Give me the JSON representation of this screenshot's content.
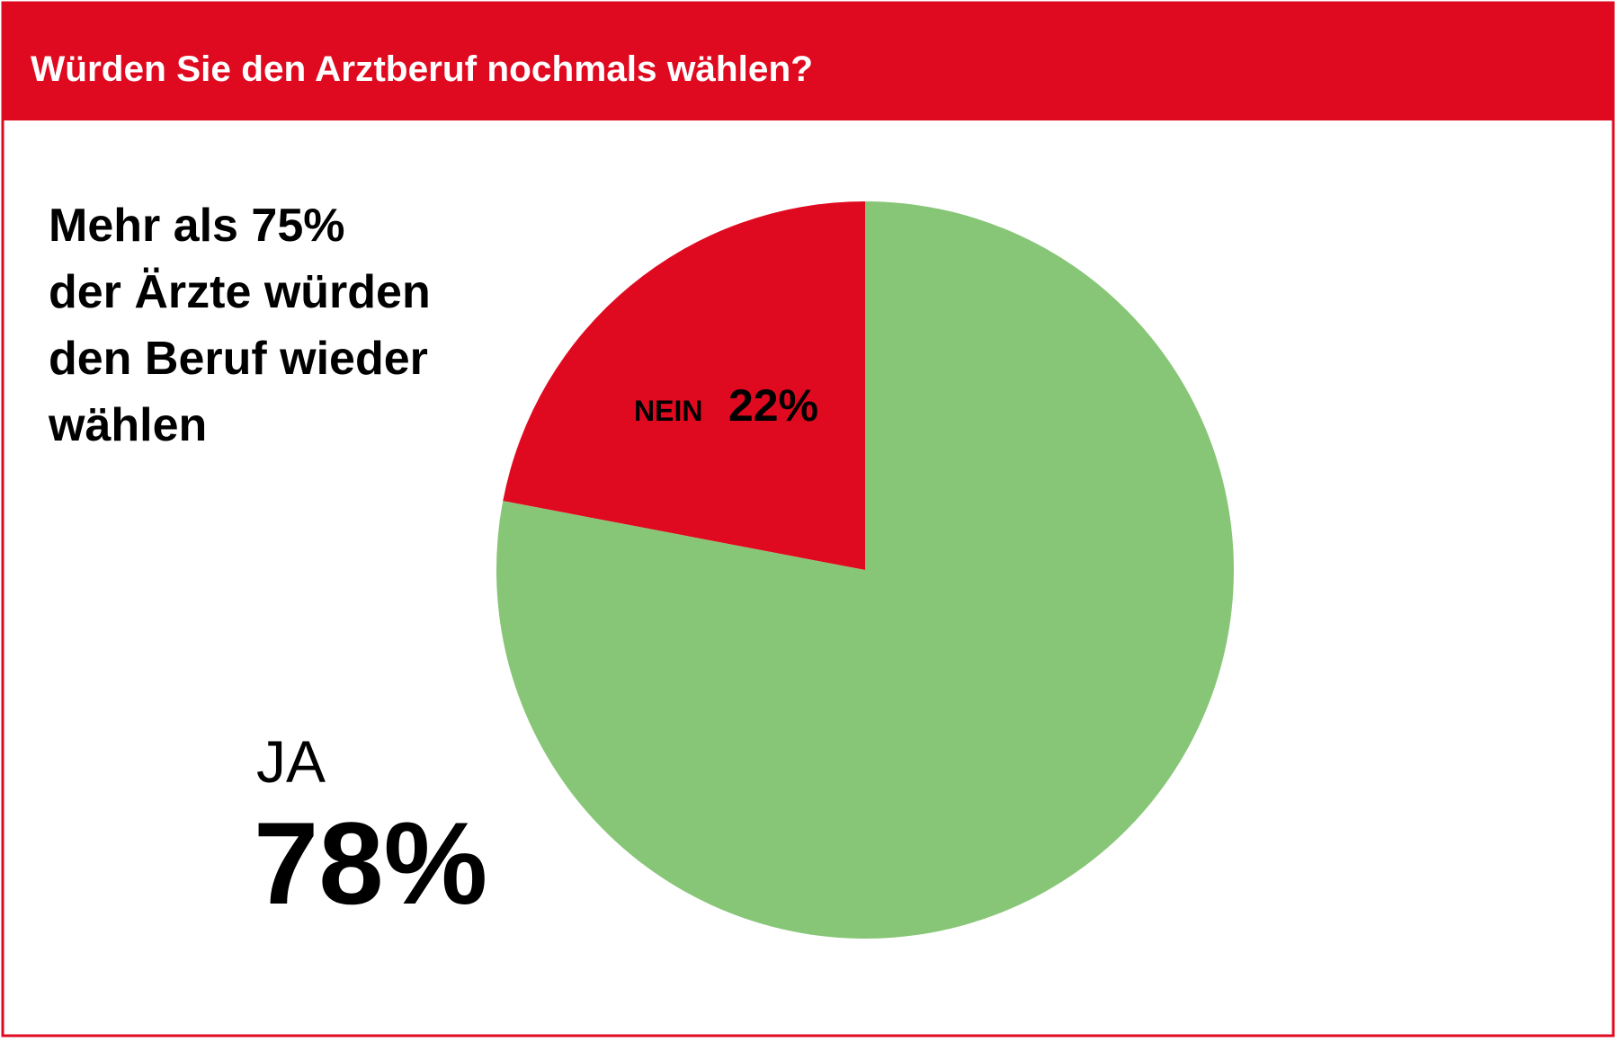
{
  "chart_data": {
    "type": "pie",
    "title": "Würden Sie den Arztberuf nochmals wählen?",
    "annotation": [
      "Mehr als 75%",
      "der Ärzte würden",
      "den Beruf wieder",
      "wählen"
    ],
    "categories": [
      "NEIN",
      "JA"
    ],
    "values": [
      22,
      78
    ],
    "value_labels": [
      "22%",
      "78%"
    ],
    "colors": [
      "#e00a20",
      "#88c677"
    ]
  }
}
